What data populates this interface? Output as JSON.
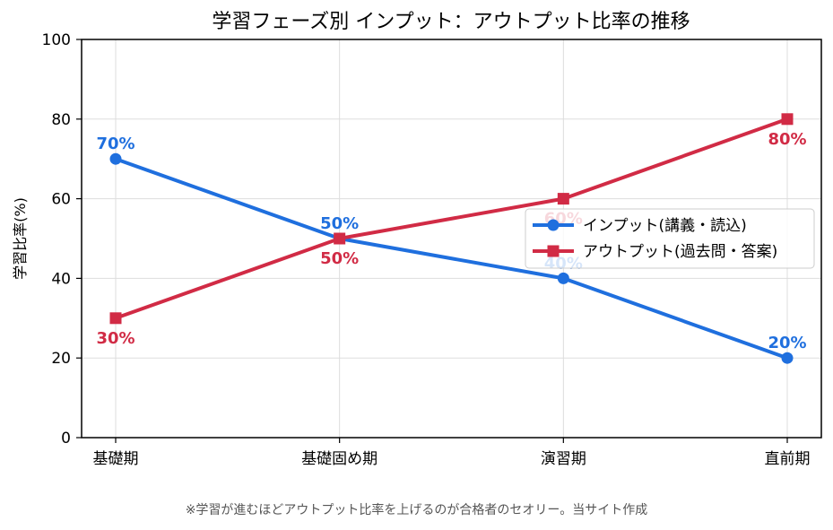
{
  "chart_data": {
    "type": "line",
    "title": "学習フェーズ別 インプット：アウトプット比率の推移",
    "xlabel": "",
    "ylabel": "学習比率(%)",
    "categories": [
      "基礎期",
      "基礎固め期",
      "演習期",
      "直前期"
    ],
    "ylim": [
      0,
      100
    ],
    "yticks": [
      0,
      20,
      40,
      60,
      80,
      100
    ],
    "grid": true,
    "legend_position": "center-right",
    "series": [
      {
        "name": "インプット(講義・読込)",
        "values": [
          70,
          50,
          40,
          20
        ],
        "labels": [
          "70%",
          "50%",
          "40%",
          "20%"
        ],
        "color": "#1f6fde",
        "marker": "circle",
        "label_position": "above"
      },
      {
        "name": "アウトプット(過去問・答案)",
        "values": [
          30,
          50,
          60,
          80
        ],
        "labels": [
          "30%",
          "50%",
          "60%",
          "80%"
        ],
        "color": "#d12b45",
        "marker": "square",
        "label_position": "below"
      }
    ]
  },
  "footnote": "※学習が進むほどアウトプット比率を上げるのが合格者のセオリー。当サイト作成"
}
